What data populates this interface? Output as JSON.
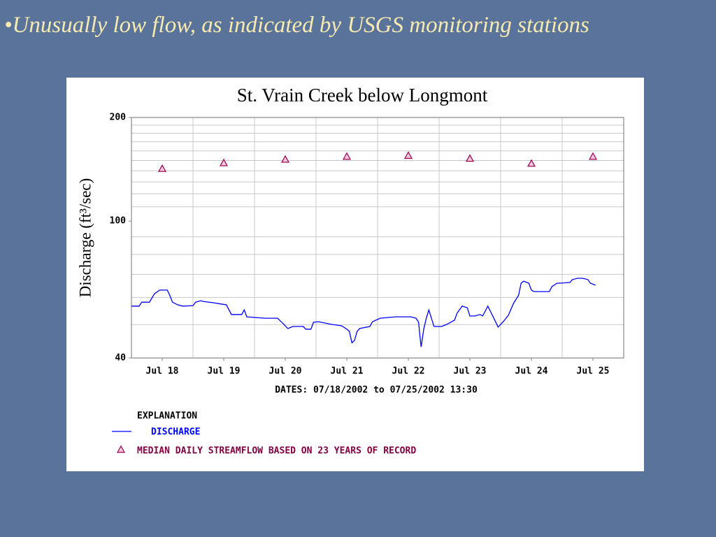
{
  "slide_title": "•Unusually low flow, as indicated by USGS monitoring stations",
  "chart_data": {
    "type": "line",
    "title": "St. Vrain Creek below Longmont",
    "ylabel": "Discharge (ft³/sec)",
    "xlabel": "DATES: 07/18/2002 to 07/25/2002 13:30",
    "legend_title": "EXPLANATION",
    "yscale": "log",
    "ylim": [
      40,
      200
    ],
    "yticks": [
      40,
      100,
      200
    ],
    "yminor": [
      50,
      60,
      70,
      80,
      90,
      110,
      120,
      130,
      140,
      150,
      160,
      170,
      180,
      190
    ],
    "grid": true,
    "xlim": [
      "2002-07-18T00:00",
      "2002-07-26T00:00"
    ],
    "xticks": [
      {
        "value": "2002-07-18T12:00",
        "label": "Jul 18"
      },
      {
        "value": "2002-07-19T12:00",
        "label": "Jul 19"
      },
      {
        "value": "2002-07-20T12:00",
        "label": "Jul 20"
      },
      {
        "value": "2002-07-21T12:00",
        "label": "Jul 21"
      },
      {
        "value": "2002-07-22T12:00",
        "label": "Jul 22"
      },
      {
        "value": "2002-07-23T12:00",
        "label": "Jul 23"
      },
      {
        "value": "2002-07-24T12:00",
        "label": "Jul 24"
      },
      {
        "value": "2002-07-25T12:00",
        "label": "Jul 25"
      }
    ],
    "series": [
      {
        "name": "DISCHARGE",
        "color": "#0000ff",
        "marker": "none",
        "x": [
          "2002-07-18T00:00",
          "2002-07-18T03:00",
          "2002-07-18T04:00",
          "2002-07-18T07:00",
          "2002-07-18T09:00",
          "2002-07-18T11:00",
          "2002-07-18T14:00",
          "2002-07-18T15:00",
          "2002-07-18T16:00",
          "2002-07-18T18:00",
          "2002-07-18T20:00",
          "2002-07-19T00:00",
          "2002-07-19T01:00",
          "2002-07-19T03:00",
          "2002-07-19T04:00",
          "2002-07-19T08:00",
          "2002-07-19T11:00",
          "2002-07-19T13:00",
          "2002-07-19T15:00",
          "2002-07-19T19:00",
          "2002-07-19T20:00",
          "2002-07-19T21:00",
          "2002-07-20T04:00",
          "2002-07-20T09:00",
          "2002-07-20T11:00",
          "2002-07-20T13:00",
          "2002-07-20T15:00",
          "2002-07-20T19:00",
          "2002-07-20T20:00",
          "2002-07-20T22:00",
          "2002-07-20T23:00",
          "2002-07-21T01:00",
          "2002-07-21T06:00",
          "2002-07-21T10:00",
          "2002-07-21T12:00",
          "2002-07-21T13:00",
          "2002-07-21T14:00",
          "2002-07-21T15:00",
          "2002-07-21T16:00",
          "2002-07-21T17:00",
          "2002-07-21T21:00",
          "2002-07-21T22:00",
          "2002-07-22T01:00",
          "2002-07-22T07:00",
          "2002-07-22T13:00",
          "2002-07-22T15:00",
          "2002-07-22T16:00",
          "2002-07-22T16:30",
          "2002-07-22T17:00",
          "2002-07-22T18:00",
          "2002-07-22T19:00",
          "2002-07-22T20:00",
          "2002-07-22T21:00",
          "2002-07-22T22:00",
          "2002-07-23T01:00",
          "2002-07-23T03:00",
          "2002-07-23T06:00",
          "2002-07-23T07:00",
          "2002-07-23T09:00",
          "2002-07-23T11:00",
          "2002-07-23T12:00",
          "2002-07-23T14:00",
          "2002-07-23T16:00",
          "2002-07-23T17:00",
          "2002-07-23T19:00",
          "2002-07-23T20:00",
          "2002-07-23T22:00",
          "2002-07-23T23:00",
          "2002-07-24T01:00",
          "2002-07-24T03:00",
          "2002-07-24T05:00",
          "2002-07-24T07:00",
          "2002-07-24T08:00",
          "2002-07-24T09:00",
          "2002-07-24T11:00",
          "2002-07-24T12:00",
          "2002-07-24T13:00",
          "2002-07-24T19:00",
          "2002-07-24T20:00",
          "2002-07-24T22:00",
          "2002-07-24T23:00",
          "2002-07-25T03:00",
          "2002-07-25T04:00",
          "2002-07-25T06:00",
          "2002-07-25T08:00",
          "2002-07-25T10:00",
          "2002-07-25T11:00",
          "2002-07-25T13:00"
        ],
        "values": [
          56.6,
          56.6,
          58.1,
          58.1,
          61.5,
          63.0,
          63.0,
          60.7,
          58.1,
          57.1,
          56.6,
          56.8,
          58.1,
          58.7,
          58.4,
          57.9,
          57.4,
          57.1,
          53.5,
          53.5,
          55.2,
          52.7,
          52.2,
          52.2,
          50.5,
          48.7,
          49.4,
          49.4,
          48.5,
          48.5,
          50.8,
          51.0,
          50.1,
          49.6,
          48.5,
          47.8,
          44.3,
          45.0,
          47.8,
          48.7,
          49.4,
          51.0,
          52.2,
          52.7,
          52.7,
          52.2,
          50.8,
          46.4,
          43.1,
          48.5,
          52.2,
          55.2,
          52.2,
          49.4,
          49.4,
          50.1,
          51.5,
          54.0,
          56.6,
          56.0,
          53.0,
          53.0,
          53.5,
          53.0,
          56.6,
          54.7,
          51.0,
          49.2,
          51.0,
          53.2,
          57.6,
          60.9,
          66.0,
          66.9,
          66.0,
          63.0,
          62.4,
          62.4,
          64.5,
          66.0,
          66.0,
          66.3,
          67.6,
          68.2,
          68.2,
          67.6,
          66.0,
          65.1
        ]
      },
      {
        "name": "MEDIAN DAILY STREAMFLOW BASED ON 23 YEARS OF RECORD",
        "color": "#99004d",
        "marker": "triangle",
        "x": [
          "2002-07-18T12:00",
          "2002-07-19T12:00",
          "2002-07-20T12:00",
          "2002-07-21T12:00",
          "2002-07-22T12:00",
          "2002-07-23T12:00",
          "2002-07-24T12:00",
          "2002-07-25T12:00"
        ],
        "values": [
          142,
          147.5,
          151,
          154,
          155,
          152,
          147,
          154
        ]
      }
    ]
  }
}
